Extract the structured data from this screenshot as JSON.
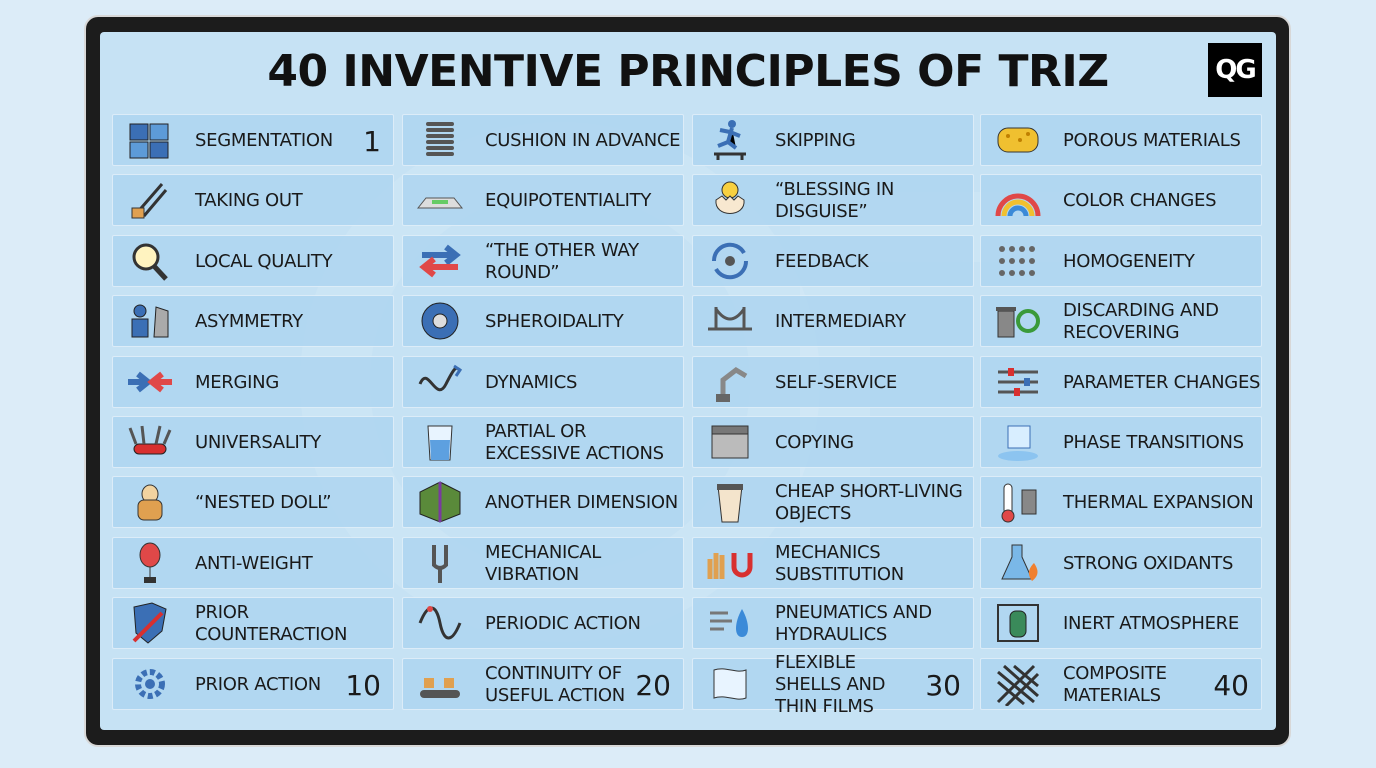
{
  "title": "40 INVENTIVE PRINCIPLES OF TRIZ",
  "logo_text": "QG",
  "colors": {
    "frame": "#1c1c1c",
    "screen": "#c6e2f4",
    "card": "#aad4f0"
  },
  "principles": [
    {
      "label": "SEGMENTATION",
      "icon": "puzzle-icon",
      "number": "1"
    },
    {
      "label": "TAKING OUT",
      "icon": "pliers-icon",
      "number": ""
    },
    {
      "label": "LOCAL QUALITY",
      "icon": "magnifier-icon",
      "number": ""
    },
    {
      "label": "ASYMMETRY",
      "icon": "asymmetric-shapes-icon",
      "number": ""
    },
    {
      "label": "MERGING",
      "icon": "arrows-converge-icon",
      "number": ""
    },
    {
      "label": "UNIVERSALITY",
      "icon": "swiss-knife-icon",
      "number": ""
    },
    {
      "label": "“NESTED DOLL”",
      "icon": "nested-doll-icon",
      "number": ""
    },
    {
      "label": "ANTI-WEIGHT",
      "icon": "balloon-icon",
      "number": ""
    },
    {
      "label": "PRIOR COUNTERACTION",
      "icon": "shield-icon",
      "number": ""
    },
    {
      "label": "PRIOR ACTION",
      "icon": "gear-icon",
      "number": "10"
    },
    {
      "label": "CUSHION IN ADVANCE",
      "icon": "spring-icon",
      "number": ""
    },
    {
      "label": "EQUIPOTENTIALITY",
      "icon": "level-icon",
      "number": ""
    },
    {
      "label": "“THE OTHER WAY ROUND”",
      "icon": "opposite-arrows-icon",
      "number": ""
    },
    {
      "label": "SPHEROIDALITY",
      "icon": "sphere-icon",
      "number": ""
    },
    {
      "label": "DYNAMICS",
      "icon": "wave-arrow-icon",
      "number": ""
    },
    {
      "label": "PARTIAL OR EXCESSIVE ACTIONS",
      "icon": "glass-icon",
      "number": ""
    },
    {
      "label": "ANOTHER DIMENSION",
      "icon": "cube-icon",
      "number": ""
    },
    {
      "label": "MECHANICAL VIBRATION",
      "icon": "tuning-fork-icon",
      "number": ""
    },
    {
      "label": "PERIODIC ACTION",
      "icon": "sine-wave-icon",
      "number": ""
    },
    {
      "label": "CONTINUITY OF USEFUL ACTION",
      "icon": "conveyor-icon",
      "number": "20"
    },
    {
      "label": "SKIPPING",
      "icon": "hurdle-runner-icon",
      "number": ""
    },
    {
      "label": "“BLESSING IN DISGUISE”",
      "icon": "hatching-chick-icon",
      "number": ""
    },
    {
      "label": "FEEDBACK",
      "icon": "feedback-loop-icon",
      "number": ""
    },
    {
      "label": "INTERMEDIARY",
      "icon": "bridge-icon",
      "number": ""
    },
    {
      "label": "SELF-SERVICE",
      "icon": "robot-arm-icon",
      "number": ""
    },
    {
      "label": "COPYING",
      "icon": "copier-icon",
      "number": ""
    },
    {
      "label": "CHEAP SHORT-LIVING OBJECTS",
      "icon": "paper-cup-icon",
      "number": ""
    },
    {
      "label": "MECHANICS SUBSTITUTION",
      "icon": "hand-magnet-icon",
      "number": ""
    },
    {
      "label": "PNEUMATICS AND HYDRAULICS",
      "icon": "air-water-icon",
      "number": ""
    },
    {
      "label": "FLEXIBLE SHELLS AND THIN FILMS",
      "icon": "film-sheet-icon",
      "number": "30"
    },
    {
      "label": "POROUS MATERIALS",
      "icon": "sponge-icon",
      "number": ""
    },
    {
      "label": "COLOR CHANGES",
      "icon": "rainbow-icon",
      "number": ""
    },
    {
      "label": "HOMOGENEITY",
      "icon": "dot-grid-icon",
      "number": ""
    },
    {
      "label": "DISCARDING AND RECOVERING",
      "icon": "trash-recycle-icon",
      "number": ""
    },
    {
      "label": "PARAMETER CHANGES",
      "icon": "sliders-icon",
      "number": ""
    },
    {
      "label": "PHASE TRANSITIONS",
      "icon": "ice-cube-icon",
      "number": ""
    },
    {
      "label": "THERMAL EXPANSION",
      "icon": "thermometer-icon",
      "number": ""
    },
    {
      "label": "STRONG OXIDANTS",
      "icon": "flask-flame-icon",
      "number": ""
    },
    {
      "label": "INERT ATMOSPHERE",
      "icon": "gas-cylinder-icon",
      "number": ""
    },
    {
      "label": "COMPOSITE MATERIALS",
      "icon": "weave-icon",
      "number": "40"
    }
  ]
}
